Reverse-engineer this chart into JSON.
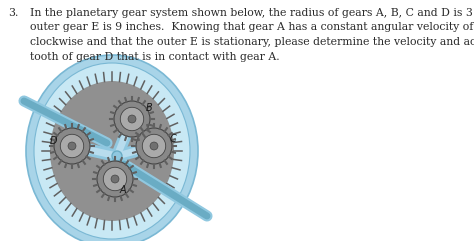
{
  "problem_number": "3.",
  "text_lines": [
    "In the planetary gear system shown below, the radius of gears A, B, C and D is 3 inches and the",
    "outer gear E is 9 inches.  Knowing that gear A has a constant angular velocity of 150 rpm",
    "clockwise and that the outer E is stationary, please determine the velocity and acceleration of the",
    "tooth of gear D that is in contact with gear A."
  ],
  "bg_color": "#ffffff",
  "text_color": "#2a2a2a",
  "font_size": 7.8,
  "number_font_size": 7.8,
  "label_font_size": 7.0,
  "outer_blue": "#a8d4e8",
  "outer_blue_dark": "#7ab8d4",
  "outer_blue_light": "#c8e8f4",
  "gear_dark": "#787878",
  "gear_mid": "#a0a0a0",
  "gear_light": "#c0c0c0",
  "tooth_color": "#606060",
  "arm_blue": "#90c8e0",
  "shaft_blue": "#90c8e0",
  "shaft_blue_dark": "#6aacc4",
  "label_color": "#1a1a1a"
}
